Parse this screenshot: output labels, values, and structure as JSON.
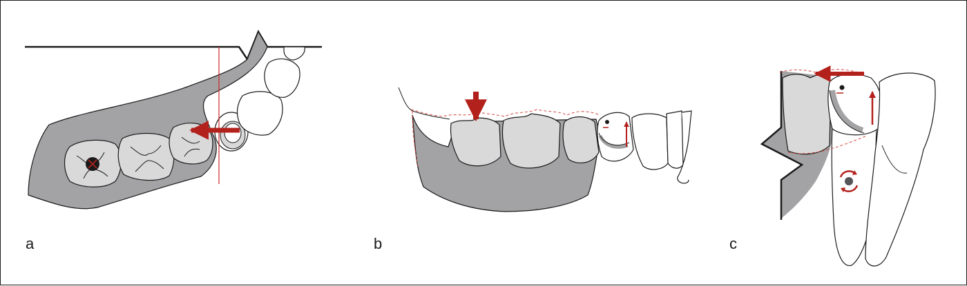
{
  "panels": [
    {
      "label": "a"
    },
    {
      "label": "b"
    },
    {
      "label": "c"
    }
  ],
  "colors": {
    "bone": "#a3a3a5",
    "tooth": "#d9d9da",
    "outline": "#1a1a1a",
    "arrow": "#b3211c",
    "reference_line": "#cc2a2a",
    "dashed_contour": "#d2443a"
  },
  "icons": [
    "force-arrow-icon",
    "rotation-arrows-icon",
    "center-of-rotation-icon",
    "dashed-displacement-contour"
  ]
}
